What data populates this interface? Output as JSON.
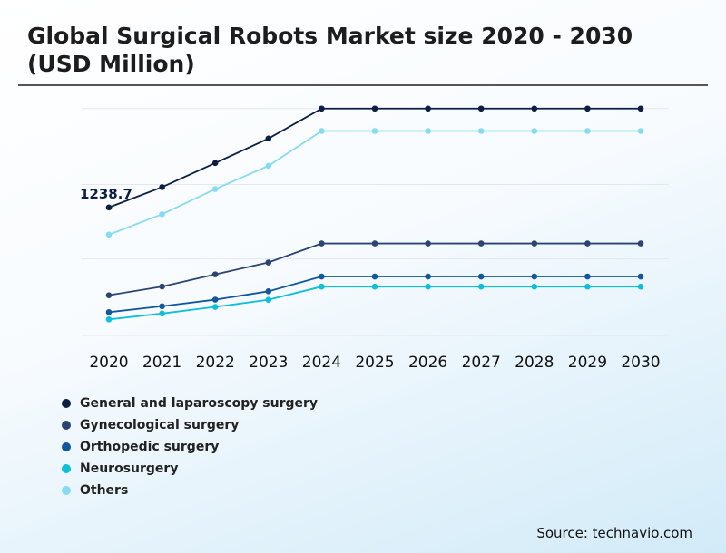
{
  "title": "Global Surgical Robots Market size 2020 - 2030 (USD Million)",
  "source": "Source: technavio.com",
  "chart_data": {
    "type": "line",
    "title": "Global Surgical Robots Market size 2020 - 2030 (USD Million)",
    "x": [
      "2020",
      "2021",
      "2022",
      "2023",
      "2024",
      "2025",
      "2026",
      "2027",
      "2028",
      "2029",
      "2030"
    ],
    "annotation": "1238.7",
    "grid": true,
    "legend_position": "bottom-left",
    "series": [
      {
        "name": "General and laparoscopy surgery",
        "color": "#0b1f45",
        "values": [
          1238.7,
          1435,
          1668,
          1905,
          2195,
          2195,
          2195,
          2195,
          2195,
          2195,
          2195
        ]
      },
      {
        "name": "Gynecological surgery",
        "color": "#2b4472",
        "values": [
          389,
          473,
          591,
          706,
          890,
          890,
          890,
          890,
          890,
          890,
          890
        ]
      },
      {
        "name": "Orthopedic surgery",
        "color": "#11579e",
        "values": [
          225,
          283,
          346,
          427,
          570,
          570,
          570,
          570,
          570,
          570,
          570
        ]
      },
      {
        "name": "Neurosurgery",
        "color": "#0dbfd9",
        "values": [
          155,
          212,
          276,
          345,
          472,
          472,
          472,
          472,
          472,
          472,
          472
        ]
      },
      {
        "name": "Others",
        "color": "#86dbf0",
        "values": [
          975,
          1173,
          1416,
          1641,
          1978,
          1978,
          1978,
          1978,
          1978,
          1978,
          1978
        ]
      }
    ]
  }
}
